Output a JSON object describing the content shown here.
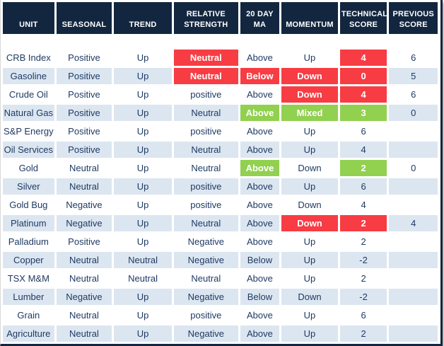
{
  "colors": {
    "header_bg": "#13263f",
    "row_base": "#ffffff",
    "row_alt": "#dce6f1",
    "hl_red": "#f83c44",
    "hl_green": "#92d050",
    "text": "#1f3a63",
    "hl_text": "#ffffff"
  },
  "table": {
    "columns": [
      {
        "key": "unit",
        "label": "UNIT"
      },
      {
        "key": "seasonal",
        "label": "SEASONAL"
      },
      {
        "key": "trend",
        "label": "TREND"
      },
      {
        "key": "relative_strength",
        "label": "RELATIVE STRENGTH"
      },
      {
        "key": "ma20",
        "label": "20 DAY MA"
      },
      {
        "key": "momentum",
        "label": "MOMENTUM"
      },
      {
        "key": "technical_score",
        "label": "TECHNICAL SCORE"
      },
      {
        "key": "previous_score",
        "label": "PREVIOUS SCORE"
      }
    ],
    "rows": [
      {
        "cells": {
          "unit": "CRB Index",
          "seasonal": "Positive",
          "trend": "Up",
          "relative_strength": "Neutral",
          "ma20": "Above",
          "momentum": "Up",
          "technical_score": "4",
          "previous_score": "6"
        },
        "highlights": {
          "relative_strength": "red",
          "technical_score": "red"
        }
      },
      {
        "cells": {
          "unit": "Gasoline",
          "seasonal": "Positive",
          "trend": "Up",
          "relative_strength": "Neutral",
          "ma20": "Below",
          "momentum": "Down",
          "technical_score": "0",
          "previous_score": "5"
        },
        "highlights": {
          "relative_strength": "red",
          "ma20": "red",
          "momentum": "red",
          "technical_score": "red"
        }
      },
      {
        "cells": {
          "unit": "Crude Oil",
          "seasonal": "Positive",
          "trend": "Up",
          "relative_strength": "positive",
          "ma20": "Above",
          "momentum": "Down",
          "technical_score": "4",
          "previous_score": "6"
        },
        "highlights": {
          "momentum": "red",
          "technical_score": "red"
        }
      },
      {
        "cells": {
          "unit": "Natural Gas",
          "seasonal": "Positive",
          "trend": "Up",
          "relative_strength": "Neutral",
          "ma20": "Above",
          "momentum": "Mixed",
          "technical_score": "3",
          "previous_score": "0"
        },
        "highlights": {
          "ma20": "green",
          "momentum": "green",
          "technical_score": "green"
        }
      },
      {
        "cells": {
          "unit": "S&P Energy",
          "seasonal": "Positive",
          "trend": "Up",
          "relative_strength": "positive",
          "ma20": "Above",
          "momentum": "Up",
          "technical_score": "6",
          "previous_score": ""
        },
        "highlights": {}
      },
      {
        "cells": {
          "unit": "Oil Services",
          "seasonal": "Positive",
          "trend": "Up",
          "relative_strength": "Neutral",
          "ma20": "Above",
          "momentum": "Up",
          "technical_score": "4",
          "previous_score": ""
        },
        "highlights": {}
      },
      {
        "cells": {
          "unit": "Gold",
          "seasonal": "Neutral",
          "trend": "Up",
          "relative_strength": "Neutral",
          "ma20": "Above",
          "momentum": "Down",
          "technical_score": "2",
          "previous_score": "0"
        },
        "highlights": {
          "ma20": "green",
          "technical_score": "green"
        }
      },
      {
        "cells": {
          "unit": "Silver",
          "seasonal": "Neutral",
          "trend": "Up",
          "relative_strength": "positive",
          "ma20": "Above",
          "momentum": "Up",
          "technical_score": "6",
          "previous_score": ""
        },
        "highlights": {}
      },
      {
        "cells": {
          "unit": "Gold Bug",
          "seasonal": "Negative",
          "trend": "Up",
          "relative_strength": "positive",
          "ma20": "Above",
          "momentum": "Down",
          "technical_score": "4",
          "previous_score": ""
        },
        "highlights": {}
      },
      {
        "cells": {
          "unit": "Platinum",
          "seasonal": "Negative",
          "trend": "Up",
          "relative_strength": "Neutral",
          "ma20": "Above",
          "momentum": "Down",
          "technical_score": "2",
          "previous_score": "4"
        },
        "highlights": {
          "momentum": "red",
          "technical_score": "red"
        }
      },
      {
        "cells": {
          "unit": "Palladium",
          "seasonal": "Positive",
          "trend": "Up",
          "relative_strength": "Negative",
          "ma20": "Above",
          "momentum": "Up",
          "technical_score": "2",
          "previous_score": ""
        },
        "highlights": {}
      },
      {
        "cells": {
          "unit": "Copper",
          "seasonal": "Neutral",
          "trend": "Neutral",
          "relative_strength": "Negative",
          "ma20": "Below",
          "momentum": "Up",
          "technical_score": "-2",
          "previous_score": ""
        },
        "highlights": {}
      },
      {
        "cells": {
          "unit": "TSX M&M",
          "seasonal": "Neutral",
          "trend": "Neutral",
          "relative_strength": "Neutral",
          "ma20": "Above",
          "momentum": "Up",
          "technical_score": "2",
          "previous_score": ""
        },
        "highlights": {}
      },
      {
        "cells": {
          "unit": "Lumber",
          "seasonal": "Negative",
          "trend": "Up",
          "relative_strength": "Negative",
          "ma20": "Below",
          "momentum": "Down",
          "technical_score": "-2",
          "previous_score": ""
        },
        "highlights": {}
      },
      {
        "cells": {
          "unit": "Grain",
          "seasonal": "Neutral",
          "trend": "Up",
          "relative_strength": "positive",
          "ma20": "Above",
          "momentum": "Up",
          "technical_score": "6",
          "previous_score": ""
        },
        "highlights": {}
      },
      {
        "cells": {
          "unit": "Agriculture",
          "seasonal": "Neutral",
          "trend": "Up",
          "relative_strength": "Negative",
          "ma20": "Above",
          "momentum": "Up",
          "technical_score": "2",
          "previous_score": ""
        },
        "highlights": {}
      }
    ]
  }
}
